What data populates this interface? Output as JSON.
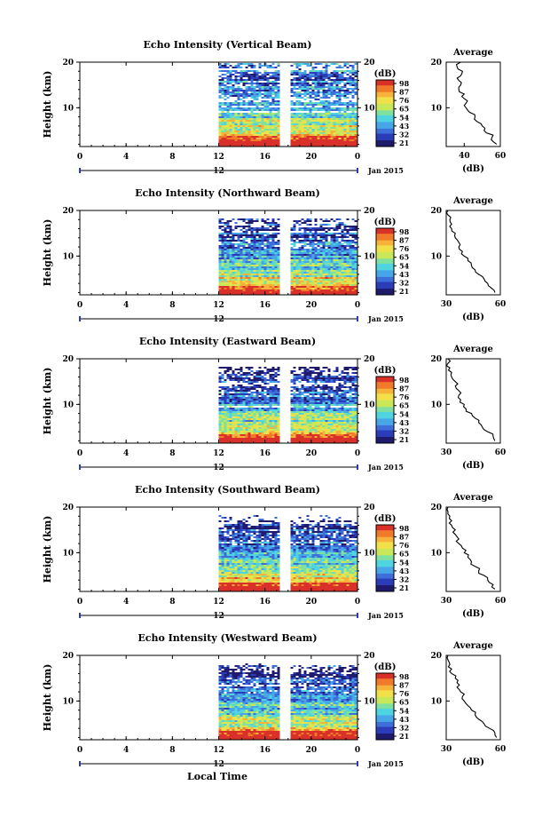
{
  "figure": {
    "bottom_xlabel": "Local Time",
    "date_label": "Jan 2015",
    "ylabel": "Height (km)",
    "avg_title": "Average",
    "avg_xlabel": "(dB)",
    "cb_unit": "(dB)",
    "cb_ticks": [
      "98",
      "87",
      "76",
      "65",
      "54",
      "43",
      "32",
      "21"
    ],
    "colormap": [
      "#1f1a6b",
      "#2b3cb8",
      "#3e6fd9",
      "#46a6e8",
      "#4fd4e0",
      "#7fe0a0",
      "#c8e85a",
      "#f2e04a",
      "#f7b23b",
      "#f07a2a",
      "#d9302a"
    ],
    "x_ticks": [
      "0",
      "4",
      "8",
      "12",
      "16",
      "20",
      "0"
    ],
    "x_tick_values": [
      0,
      4,
      8,
      12,
      16,
      20,
      24
    ],
    "y_ticks": [
      "20",
      "10"
    ],
    "y_tick_values": [
      20,
      10
    ],
    "day_marker": "12"
  },
  "chart_data": [
    {
      "type": "heatmap",
      "title": "Echo Intensity (Vertical Beam)",
      "xlabel": "Local Time",
      "ylabel": "Height (km)",
      "xlim": [
        0,
        24
      ],
      "ylim": [
        1.5,
        20
      ],
      "data_start_hour": 12,
      "gap_hours": [
        17.5,
        18
      ],
      "top_km": 20,
      "colorbar_range": [
        21,
        98
      ],
      "average": {
        "xlim": [
          30,
          60
        ],
        "x_ticks": [
          "40",
          "60"
        ],
        "x_tick_values": [
          40,
          60
        ],
        "height_km": [
          2,
          3,
          4,
          5,
          6,
          7,
          8,
          9,
          10,
          11,
          12,
          13,
          14,
          15,
          16,
          17,
          18,
          19,
          20
        ],
        "db": [
          58,
          55,
          56,
          51,
          50,
          47,
          46,
          43,
          41,
          41,
          40,
          40,
          37,
          38,
          37,
          38,
          39,
          36,
          38
        ]
      }
    },
    {
      "type": "heatmap",
      "title": "Echo Intensity (Northward Beam)",
      "xlabel": "Local Time",
      "ylabel": "Height (km)",
      "xlim": [
        0,
        24
      ],
      "ylim": [
        1.5,
        20
      ],
      "data_start_hour": 12,
      "gap_hours": [
        17.5,
        18
      ],
      "top_km": 18,
      "colorbar_range": [
        21,
        98
      ],
      "average": {
        "xlim": [
          30,
          60
        ],
        "x_ticks": [
          "30",
          "60"
        ],
        "x_tick_values": [
          30,
          60
        ],
        "height_km": [
          2,
          3,
          4,
          5,
          6,
          7,
          8,
          9,
          10,
          11,
          12,
          13,
          14,
          15,
          16,
          17,
          18,
          19,
          20
        ],
        "db": [
          57,
          55,
          53,
          51,
          48,
          46,
          44,
          42,
          40,
          39,
          37,
          37,
          35,
          35,
          33,
          33,
          32,
          31,
          31
        ]
      }
    },
    {
      "type": "heatmap",
      "title": "Echo Intensity (Eastward Beam)",
      "xlabel": "Local Time",
      "ylabel": "Height (km)",
      "xlim": [
        0,
        24
      ],
      "ylim": [
        1.5,
        20
      ],
      "data_start_hour": 12,
      "gap_hours": [
        17.5,
        18
      ],
      "top_km": 18,
      "colorbar_range": [
        21,
        98
      ],
      "average": {
        "xlim": [
          30,
          60
        ],
        "x_ticks": [
          "30",
          "60"
        ],
        "x_tick_values": [
          30,
          60
        ],
        "height_km": [
          2,
          3,
          4,
          5,
          6,
          7,
          8,
          9,
          10,
          11,
          12,
          13,
          14,
          15,
          16,
          17,
          18,
          19,
          20
        ],
        "db": [
          57,
          56,
          53,
          50,
          48,
          46,
          44,
          41,
          40,
          38,
          37,
          37,
          35,
          35,
          33,
          33,
          32,
          31,
          31
        ]
      }
    },
    {
      "type": "heatmap",
      "title": "Echo Intensity (Southward Beam)",
      "xlabel": "Local Time",
      "ylabel": "Height (km)",
      "xlim": [
        0,
        24
      ],
      "ylim": [
        1.5,
        20
      ],
      "data_start_hour": 12,
      "gap_hours": [
        17.5,
        18
      ],
      "top_km": 18,
      "colorbar_range": [
        21,
        98
      ],
      "average": {
        "xlim": [
          30,
          60
        ],
        "x_ticks": [
          "30",
          "60"
        ],
        "x_tick_values": [
          30,
          60
        ],
        "height_km": [
          2,
          3,
          4,
          5,
          6,
          7,
          8,
          9,
          10,
          11,
          12,
          13,
          14,
          15,
          16,
          17,
          18,
          19,
          20
        ],
        "db": [
          57,
          56,
          53,
          51,
          48,
          46,
          44,
          42,
          40,
          39,
          37,
          37,
          35,
          35,
          33,
          33,
          32,
          31,
          31
        ]
      }
    },
    {
      "type": "heatmap",
      "title": "Echo Intensity (Westward Beam)",
      "xlabel": "Local Time",
      "ylabel": "Height (km)",
      "xlim": [
        0,
        24
      ],
      "ylim": [
        1.5,
        20
      ],
      "data_start_hour": 12,
      "gap_hours": [
        17.5,
        18
      ],
      "top_km": 18,
      "colorbar_range": [
        21,
        98
      ],
      "average": {
        "xlim": [
          30,
          60
        ],
        "x_ticks": [
          "30",
          "60"
        ],
        "x_tick_values": [
          30,
          60
        ],
        "height_km": [
          2,
          3,
          4,
          5,
          6,
          7,
          8,
          9,
          10,
          11,
          12,
          13,
          14,
          15,
          16,
          17,
          18,
          19,
          20
        ],
        "db": [
          58,
          57,
          54,
          51,
          48,
          46,
          44,
          42,
          40,
          39,
          38,
          36,
          36,
          35,
          33,
          33,
          32,
          31,
          31
        ]
      }
    }
  ]
}
